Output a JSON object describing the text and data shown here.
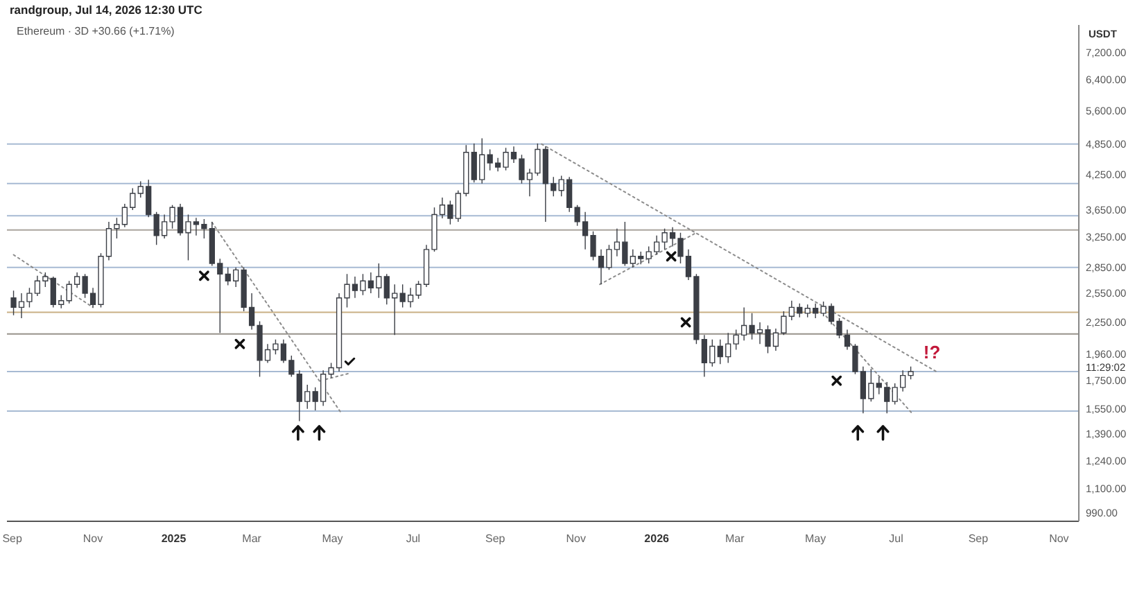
{
  "chart_data": {
    "type": "candlestick",
    "title": "Ethereum · 3D +30.66 (+1.71%)",
    "ylabel": "USDT",
    "annotations": [
      "randgroup, Jul 14, 2026 12:30 UTC",
      "11:29:02",
      "!?"
    ],
    "log": true,
    "color": "#3b3e45",
    "xlim": [
      "2024-08-28",
      "2026-11-16"
    ],
    "xticks": [
      {
        "value": "2024-09-01",
        "label": "Sep"
      },
      {
        "value": "2024-11-01",
        "label": "Nov"
      },
      "2025",
      {
        "value": "2025-03-01",
        "label": "Mar"
      },
      {
        "value": "2025-05-01",
        "label": "May"
      },
      {
        "value": "2025-07-01",
        "label": "Jul"
      },
      {
        "value": "2025-09-01",
        "label": "Sep"
      },
      {
        "value": "2025-11-01",
        "label": "Nov"
      },
      "2026",
      {
        "value": "2026-03-01",
        "label": "Mar"
      },
      {
        "value": "2026-05-01",
        "label": "May"
      },
      {
        "value": "2026-07-01",
        "label": "Jul"
      },
      {
        "value": "2026-09-01",
        "label": "Sep"
      },
      {
        "value": "2026-11-01",
        "label": "Nov"
      }
    ],
    "ylim": [
      955,
      8100
    ],
    "yticks": [
      {
        "value": 990,
        "label": "990.00"
      },
      {
        "value": 1100,
        "label": "1,100.00"
      },
      {
        "value": 1240,
        "label": "1,240.00"
      },
      {
        "value": 1390,
        "label": "1,390.00"
      },
      {
        "value": 1550,
        "label": "1,550.00"
      },
      {
        "value": 1750,
        "label": "1,750.00"
      },
      {
        "value": 1960,
        "label": "1,960.00"
      },
      {
        "value": 2250,
        "label": "2,250.00"
      },
      {
        "value": 2550,
        "label": "2,550.00"
      },
      {
        "value": 2850,
        "label": "2,850.00"
      },
      {
        "value": 3250,
        "label": "3,250.00"
      },
      {
        "value": 3650,
        "label": "3,650.00"
      },
      {
        "value": 4250,
        "label": "4,250.00"
      },
      {
        "value": 4850,
        "label": "4,850.00"
      },
      {
        "value": 5600,
        "label": "5,600.00"
      },
      {
        "value": 6400,
        "label": "6,400.00"
      },
      {
        "value": 7200,
        "label": "7,200.00"
      }
    ],
    "ref_lines": [
      {
        "axis": "y",
        "value": 4850,
        "color": "#a7bad3"
      },
      {
        "axis": "y",
        "value": 4090,
        "color": "#a7bad3"
      },
      {
        "axis": "y",
        "value": 3560,
        "color": "#a7bad3"
      },
      {
        "axis": "y",
        "value": 3350,
        "color": "#aaa59d"
      },
      {
        "axis": "y",
        "value": 2850,
        "color": "#a7bad3"
      },
      {
        "axis": "y",
        "value": 2350,
        "color": "#c9b084"
      },
      {
        "axis": "y",
        "value": 2140,
        "color": "#97928a"
      },
      {
        "axis": "y",
        "value": 1820,
        "color": "#a7bad3"
      },
      {
        "axis": "y",
        "value": 1535,
        "color": "#a7bad3"
      }
    ],
    "series": [
      {
        "type": "line",
        "color": "#8c8c8c",
        "line_style": "dotted",
        "x": [
          "2024-09-02",
          "2024-11-01"
        ],
        "values": [
          3010,
          2400
        ]
      },
      {
        "type": "line",
        "color": "#8c8c8c",
        "line_style": "dotted",
        "x": [
          "2025-01-30",
          "2025-05-07"
        ],
        "values": [
          3460,
          1530
        ]
      },
      {
        "type": "line",
        "color": "#8c8c8c",
        "line_style": "dotted",
        "x": [
          "2025-04-22",
          "2025-05-15"
        ],
        "values": [
          1750,
          1810
        ]
      },
      {
        "type": "line",
        "color": "#8c8c8c",
        "line_style": "dotted",
        "x": [
          "2025-10-06",
          "2026-08-02"
        ],
        "values": [
          4850,
          1810
        ]
      },
      {
        "type": "line",
        "color": "#8c8c8c",
        "line_style": "dotted",
        "x": [
          "2025-11-19",
          "2026-01-30"
        ],
        "values": [
          2650,
          3300
        ]
      },
      {
        "type": "line",
        "color": "#8c8c8c",
        "line_style": "dotted",
        "x": [
          "2026-05-09",
          "2026-07-13"
        ],
        "values": [
          2310,
          1520
        ]
      }
    ],
    "x": [
      "2024-09-02",
      "2024-09-08",
      "2024-09-14",
      "2024-09-20",
      "2024-09-26",
      "2024-10-02",
      "2024-10-08",
      "2024-10-14",
      "2024-10-20",
      "2024-10-26",
      "2024-11-01",
      "2024-11-07",
      "2024-11-13",
      "2024-11-19",
      "2024-11-25",
      "2024-12-01",
      "2024-12-07",
      "2024-12-13",
      "2024-12-19",
      "2024-12-25",
      "2024-12-31",
      "2025-01-06",
      "2025-01-12",
      "2025-01-18",
      "2025-01-24",
      "2025-01-30",
      "2025-02-05",
      "2025-02-11",
      "2025-02-17",
      "2025-02-23",
      "2025-03-01",
      "2025-03-07",
      "2025-03-13",
      "2025-03-19",
      "2025-03-25",
      "2025-03-31",
      "2025-04-06",
      "2025-04-12",
      "2025-04-18",
      "2025-04-24",
      "2025-04-30",
      "2025-05-06",
      "2025-05-12",
      "2025-05-18",
      "2025-05-24",
      "2025-05-30",
      "2025-06-05",
      "2025-06-11",
      "2025-06-17",
      "2025-06-23",
      "2025-06-29",
      "2025-07-05",
      "2025-07-11",
      "2025-07-17",
      "2025-07-23",
      "2025-07-29",
      "2025-08-04",
      "2025-08-10",
      "2025-08-16",
      "2025-08-22",
      "2025-08-28",
      "2025-09-03",
      "2025-09-09",
      "2025-09-15",
      "2025-09-21",
      "2025-09-27",
      "2025-10-03",
      "2025-10-09",
      "2025-10-15",
      "2025-10-21",
      "2025-10-27",
      "2025-11-02",
      "2025-11-08",
      "2025-11-14",
      "2025-11-20",
      "2025-11-26",
      "2025-12-02",
      "2025-12-08",
      "2025-12-14",
      "2025-12-20",
      "2025-12-26",
      "2026-01-01",
      "2026-01-07",
      "2026-01-13",
      "2026-01-19",
      "2026-01-25",
      "2026-01-31",
      "2026-02-06",
      "2026-02-12",
      "2026-02-18",
      "2026-02-24",
      "2026-03-02",
      "2026-03-08",
      "2026-03-14",
      "2026-03-20",
      "2026-03-26",
      "2026-04-01",
      "2026-04-07",
      "2026-04-13",
      "2026-04-19",
      "2026-04-25",
      "2026-05-01",
      "2026-05-07",
      "2026-05-13",
      "2026-05-19",
      "2026-05-25",
      "2026-05-31",
      "2026-06-06",
      "2026-06-12",
      "2026-06-18",
      "2026-06-24",
      "2026-06-30",
      "2026-07-06",
      "2026-07-12"
    ],
    "ohlc": [
      [
        2500,
        2580,
        2320,
        2400
      ],
      [
        2400,
        2550,
        2290,
        2460
      ],
      [
        2460,
        2610,
        2400,
        2550
      ],
      [
        2550,
        2750,
        2520,
        2690
      ],
      [
        2690,
        2790,
        2620,
        2740
      ],
      [
        2720,
        2740,
        2400,
        2430
      ],
      [
        2430,
        2530,
        2390,
        2470
      ],
      [
        2470,
        2690,
        2440,
        2650
      ],
      [
        2650,
        2790,
        2610,
        2740
      ],
      [
        2740,
        2770,
        2500,
        2550
      ],
      [
        2550,
        2610,
        2400,
        2430
      ],
      [
        2430,
        3030,
        2400,
        2990
      ],
      [
        2990,
        3470,
        2940,
        3370
      ],
      [
        3370,
        3530,
        3230,
        3430
      ],
      [
        3430,
        3750,
        3390,
        3690
      ],
      [
        3690,
        4010,
        3650,
        3920
      ],
      [
        3920,
        4130,
        3850,
        4040
      ],
      [
        4040,
        4160,
        3540,
        3580
      ],
      [
        3580,
        3620,
        3140,
        3270
      ],
      [
        3270,
        3580,
        3230,
        3470
      ],
      [
        3470,
        3730,
        3370,
        3690
      ],
      [
        3690,
        3750,
        3270,
        3310
      ],
      [
        3310,
        3580,
        2940,
        3470
      ],
      [
        3470,
        3530,
        3270,
        3430
      ],
      [
        3430,
        3510,
        3230,
        3370
      ],
      [
        3370,
        3470,
        2870,
        2900
      ],
      [
        2900,
        2960,
        2150,
        2770
      ],
      [
        2770,
        2850,
        2640,
        2690
      ],
      [
        2690,
        2850,
        2620,
        2820
      ],
      [
        2820,
        2850,
        2360,
        2400
      ],
      [
        2400,
        2550,
        2180,
        2220
      ],
      [
        2220,
        2260,
        1780,
        1910
      ],
      [
        1910,
        2050,
        1890,
        2000
      ],
      [
        2000,
        2090,
        1960,
        2050
      ],
      [
        2050,
        2090,
        1890,
        1910
      ],
      [
        1910,
        1950,
        1780,
        1800
      ],
      [
        1800,
        1830,
        1470,
        1600
      ],
      [
        1600,
        1720,
        1550,
        1670
      ],
      [
        1670,
        1700,
        1540,
        1600
      ],
      [
        1600,
        1830,
        1570,
        1800
      ],
      [
        1800,
        1890,
        1770,
        1850
      ],
      [
        1850,
        2550,
        1820,
        2500
      ],
      [
        2500,
        2770,
        2400,
        2650
      ],
      [
        2650,
        2740,
        2500,
        2580
      ],
      [
        2580,
        2770,
        2530,
        2690
      ],
      [
        2690,
        2790,
        2550,
        2610
      ],
      [
        2610,
        2900,
        2500,
        2740
      ],
      [
        2740,
        2770,
        2430,
        2500
      ],
      [
        2500,
        2650,
        2130,
        2550
      ],
      [
        2550,
        2650,
        2400,
        2460
      ],
      [
        2460,
        2610,
        2400,
        2530
      ],
      [
        2530,
        2690,
        2490,
        2650
      ],
      [
        2650,
        3140,
        2620,
        3080
      ],
      [
        3080,
        3690,
        3050,
        3580
      ],
      [
        3580,
        3850,
        3520,
        3730
      ],
      [
        3730,
        3800,
        3430,
        3520
      ],
      [
        3520,
        3970,
        3470,
        3920
      ],
      [
        3920,
        4830,
        3870,
        4680
      ],
      [
        4680,
        4860,
        4110,
        4160
      ],
      [
        4160,
        4970,
        4090,
        4630
      ],
      [
        4630,
        4740,
        4330,
        4470
      ],
      [
        4470,
        4570,
        4310,
        4390
      ],
      [
        4390,
        4770,
        4330,
        4680
      ],
      [
        4680,
        4800,
        4470,
        4550
      ],
      [
        4550,
        4630,
        4090,
        4160
      ],
      [
        4160,
        4360,
        3870,
        4280
      ],
      [
        4280,
        4860,
        4230,
        4740
      ],
      [
        4740,
        4800,
        3470,
        4090
      ],
      [
        4090,
        4210,
        3870,
        3970
      ],
      [
        3970,
        4230,
        3870,
        4160
      ],
      [
        4160,
        4210,
        3620,
        3690
      ],
      [
        3690,
        3730,
        3410,
        3470
      ],
      [
        3470,
        3620,
        3080,
        3270
      ],
      [
        3270,
        3330,
        2940,
        2990
      ],
      [
        2990,
        3080,
        2650,
        2850
      ],
      [
        2850,
        3140,
        2820,
        3080
      ],
      [
        3080,
        3370,
        2990,
        3180
      ],
      [
        3180,
        3470,
        2870,
        2900
      ],
      [
        2900,
        3080,
        2850,
        2990
      ],
      [
        2990,
        3050,
        2890,
        2960
      ],
      [
        2960,
        3120,
        2900,
        3050
      ],
      [
        3050,
        3270,
        3010,
        3180
      ],
      [
        3180,
        3370,
        3080,
        3310
      ],
      [
        3310,
        3390,
        3120,
        3230
      ],
      [
        3230,
        3310,
        2900,
        2990
      ],
      [
        2990,
        3080,
        2700,
        2740
      ],
      [
        2740,
        2770,
        2050,
        2090
      ],
      [
        2090,
        2130,
        1780,
        1890
      ],
      [
        1890,
        2090,
        1860,
        2030
      ],
      [
        2030,
        2090,
        1880,
        1940
      ],
      [
        1940,
        2150,
        1890,
        2050
      ],
      [
        2050,
        2180,
        2000,
        2130
      ],
      [
        2130,
        2400,
        2080,
        2220
      ],
      [
        2220,
        2340,
        2090,
        2150
      ],
      [
        2150,
        2250,
        2050,
        2180
      ],
      [
        2180,
        2220,
        1970,
        2030
      ],
      [
        2030,
        2190,
        1990,
        2150
      ],
      [
        2150,
        2360,
        2130,
        2310
      ],
      [
        2310,
        2470,
        2270,
        2400
      ],
      [
        2400,
        2440,
        2300,
        2340
      ],
      [
        2340,
        2430,
        2300,
        2390
      ],
      [
        2390,
        2440,
        2290,
        2340
      ],
      [
        2340,
        2460,
        2310,
        2410
      ],
      [
        2410,
        2440,
        2230,
        2260
      ],
      [
        2260,
        2290,
        2100,
        2130
      ],
      [
        2130,
        2180,
        2000,
        2030
      ],
      [
        2030,
        2050,
        1800,
        1820
      ],
      [
        1820,
        1860,
        1520,
        1620
      ],
      [
        1620,
        1840,
        1600,
        1730
      ],
      [
        1730,
        1780,
        1650,
        1700
      ],
      [
        1700,
        1740,
        1520,
        1600
      ],
      [
        1600,
        1730,
        1580,
        1700
      ],
      [
        1700,
        1830,
        1670,
        1790
      ],
      [
        1790,
        1860,
        1760,
        1820
      ]
    ]
  }
}
